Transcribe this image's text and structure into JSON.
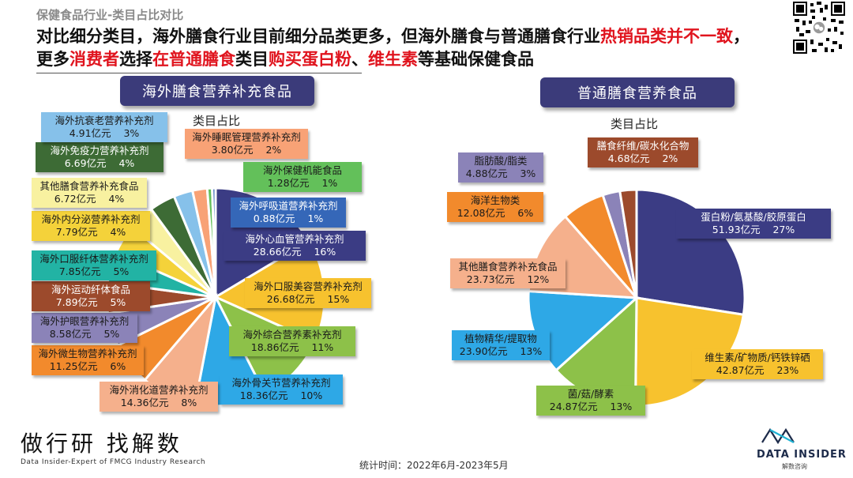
{
  "header": {
    "category": "保健食品行业-类目占比对比",
    "headline_parts": [
      {
        "text": "对比细分类目，海外膳食行业目前细分品类更多，但海外膳食与普通膳食行业",
        "red": false
      },
      {
        "text": "热销品类并不一致",
        "red": true
      },
      {
        "text": "，更多",
        "red": false
      },
      {
        "text": "消费者",
        "red": true
      },
      {
        "text": "选择",
        "red": false
      },
      {
        "text": "在普通膳食",
        "red": true
      },
      {
        "text": "类目",
        "red": false
      },
      {
        "text": "购买蛋白粉",
        "red": true
      },
      {
        "text": "、",
        "red": false
      },
      {
        "text": "维生素",
        "red": true
      },
      {
        "text": "等基础保健食品",
        "red": false
      }
    ]
  },
  "chart_data": [
    {
      "type": "pie",
      "title": "海外膳食营养补充食品",
      "subtitle": "类目占比",
      "slices": [
        {
          "name": "海外心血管营养补充剂",
          "value": "28.66亿元",
          "share": "16%",
          "amount": 28.66,
          "color": "#3b3c84",
          "text_color": "#ffffff"
        },
        {
          "name": "海外口服美容营养补充剂",
          "value": "26.68亿元",
          "share": "15%",
          "amount": 26.68,
          "color": "#f7c22e",
          "text_color": "#1a1a1a"
        },
        {
          "name": "海外综合营养素补充剂",
          "value": "18.86亿元",
          "share": "11%",
          "amount": 18.86,
          "color": "#8dc149",
          "text_color": "#1a1a1a"
        },
        {
          "name": "海外骨关节营养补充剂",
          "value": "18.36亿元",
          "share": "10%",
          "amount": 18.36,
          "color": "#2ea8e6",
          "text_color": "#1a1a1a"
        },
        {
          "name": "海外消化道营养补充剂",
          "value": "14.36亿元",
          "share": "8%",
          "amount": 14.36,
          "color": "#f5b08c",
          "text_color": "#1a1a1a"
        },
        {
          "name": "海外微生物营养补充剂",
          "value": "11.25亿元",
          "share": "6%",
          "amount": 11.25,
          "color": "#f28a2c",
          "text_color": "#1a1a1a"
        },
        {
          "name": "海外护眼营养补充剂",
          "value": "8.58亿元",
          "share": "5%",
          "amount": 8.58,
          "color": "#8b83b8",
          "text_color": "#1a1a1a"
        },
        {
          "name": "海外运动纤体食品",
          "value": "7.89亿元",
          "share": "5%",
          "amount": 7.89,
          "color": "#9c4a2c",
          "text_color": "#ffffff"
        },
        {
          "name": "海外口服纤体营养补充剂",
          "value": "7.85亿元",
          "share": "5%",
          "amount": 7.85,
          "color": "#22b3a4",
          "text_color": "#1a1a1a"
        },
        {
          "name": "海外内分泌营养补充剂",
          "value": "7.79亿元",
          "share": "4%",
          "amount": 7.79,
          "color": "#f4d23a",
          "text_color": "#1a1a1a"
        },
        {
          "name": "其他膳食营养补充食品",
          "value": "6.72亿元",
          "share": "4%",
          "amount": 6.72,
          "color": "#f8f1a0",
          "text_color": "#1a1a1a"
        },
        {
          "name": "海外免疫力营养补充剂",
          "value": "6.69亿元",
          "share": "4%",
          "amount": 6.69,
          "color": "#3d6b35",
          "text_color": "#ffffff"
        },
        {
          "name": "海外抗衰老营养补充剂",
          "value": "4.91亿元",
          "share": "3%",
          "amount": 4.91,
          "color": "#86c1ea",
          "text_color": "#1a1a1a"
        },
        {
          "name": "海外睡眠管理营养补充剂",
          "value": "3.80亿元",
          "share": "2%",
          "amount": 3.8,
          "color": "#f8a276",
          "text_color": "#1a1a1a"
        },
        {
          "name": "海外保健机能食品",
          "value": "1.28亿元",
          "share": "1%",
          "amount": 1.28,
          "color": "#63c05a",
          "text_color": "#1a1a1a"
        },
        {
          "name": "海外呼吸道营养补充剂",
          "value": "0.88亿元",
          "share": "1%",
          "amount": 0.88,
          "color": "#3567b8",
          "text_color": "#ffffff"
        }
      ]
    },
    {
      "type": "pie",
      "title": "普通膳食营养食品",
      "subtitle": "类目占比",
      "slices": [
        {
          "name": "蛋白粉/氨基酸/胶原蛋白",
          "value": "51.93亿元",
          "share": "27%",
          "amount": 51.93,
          "color": "#3b3c84",
          "text_color": "#ffffff"
        },
        {
          "name": "维生素/矿物质/钙铁锌硒",
          "value": "42.87亿元",
          "share": "23%",
          "amount": 42.87,
          "color": "#f7c22e",
          "text_color": "#1a1a1a"
        },
        {
          "name": "菌/菇/酵素",
          "value": "24.87亿元",
          "share": "13%",
          "amount": 24.87,
          "color": "#8dc149",
          "text_color": "#1a1a1a"
        },
        {
          "name": "植物精华/提取物",
          "value": "23.90亿元",
          "share": "13%",
          "amount": 23.9,
          "color": "#2ea8e6",
          "text_color": "#1a1a1a"
        },
        {
          "name": "其他膳食营养补充食品",
          "value": "23.73亿元",
          "share": "12%",
          "amount": 23.73,
          "color": "#f5b08c",
          "text_color": "#1a1a1a"
        },
        {
          "name": "海洋生物类",
          "value": "12.08亿元",
          "share": "6%",
          "amount": 12.08,
          "color": "#f28a2c",
          "text_color": "#1a1a1a"
        },
        {
          "name": "脂肪酸/脂类",
          "value": "4.88亿元",
          "share": "3%",
          "amount": 4.88,
          "color": "#8b83b8",
          "text_color": "#1a1a1a"
        },
        {
          "name": "膳食纤维/碳水化合物",
          "value": "4.68亿元",
          "share": "2%",
          "amount": 4.68,
          "color": "#9c4a2c",
          "text_color": "#ffffff"
        }
      ]
    }
  ],
  "footer": {
    "slogan": "做行研 找解数",
    "tagline": "Data Insider-Expert of FMCG Industry Research",
    "stat_period": "统计时间：2022年6月-2023年5月",
    "brand": "DATA INSIDER",
    "brand_cn": "解数咨询"
  }
}
